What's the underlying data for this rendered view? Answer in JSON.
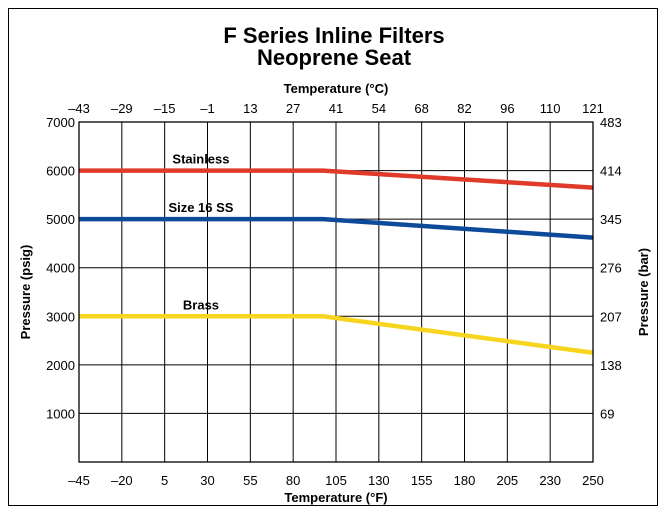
{
  "chart_data": {
    "type": "line",
    "title_lines": [
      "F Series Inline Filters",
      "Neoprene Seat"
    ],
    "top_axis_label": "Temperature (°C)",
    "xlabel": "Temperature (°F)",
    "ylabel": "Pressure (psig)",
    "y2label": "Pressure (bar)",
    "xlim": [
      -45,
      250
    ],
    "ylim": [
      0,
      7000
    ],
    "x_ticks": [
      "–45",
      "–20",
      "5",
      "30",
      "55",
      "80",
      "105",
      "130",
      "155",
      "180",
      "205",
      "230",
      "250"
    ],
    "top_ticks": [
      "–43",
      "–29",
      "–15",
      "–1",
      "13",
      "27",
      "41",
      "54",
      "68",
      "82",
      "96",
      "110",
      "121"
    ],
    "y_ticks": [
      "1000",
      "2000",
      "3000",
      "4000",
      "5000",
      "6000",
      "7000"
    ],
    "y2_ticks": [
      "69",
      "138",
      "207",
      "276",
      "345",
      "414",
      "483"
    ],
    "grid": true,
    "series": [
      {
        "name": "Stainless",
        "color": "#e03a2b",
        "x": [
          -45,
          95,
          250
        ],
        "y": [
          6000,
          6000,
          5650
        ]
      },
      {
        "name": "Size 16 SS",
        "color": "#0d4a9a",
        "x": [
          -45,
          95,
          250
        ],
        "y": [
          5000,
          5000,
          4620
        ]
      },
      {
        "name": "Brass",
        "color": "#f7d51e",
        "x": [
          -45,
          95,
          250
        ],
        "y": [
          3000,
          3000,
          2250
        ]
      }
    ]
  }
}
